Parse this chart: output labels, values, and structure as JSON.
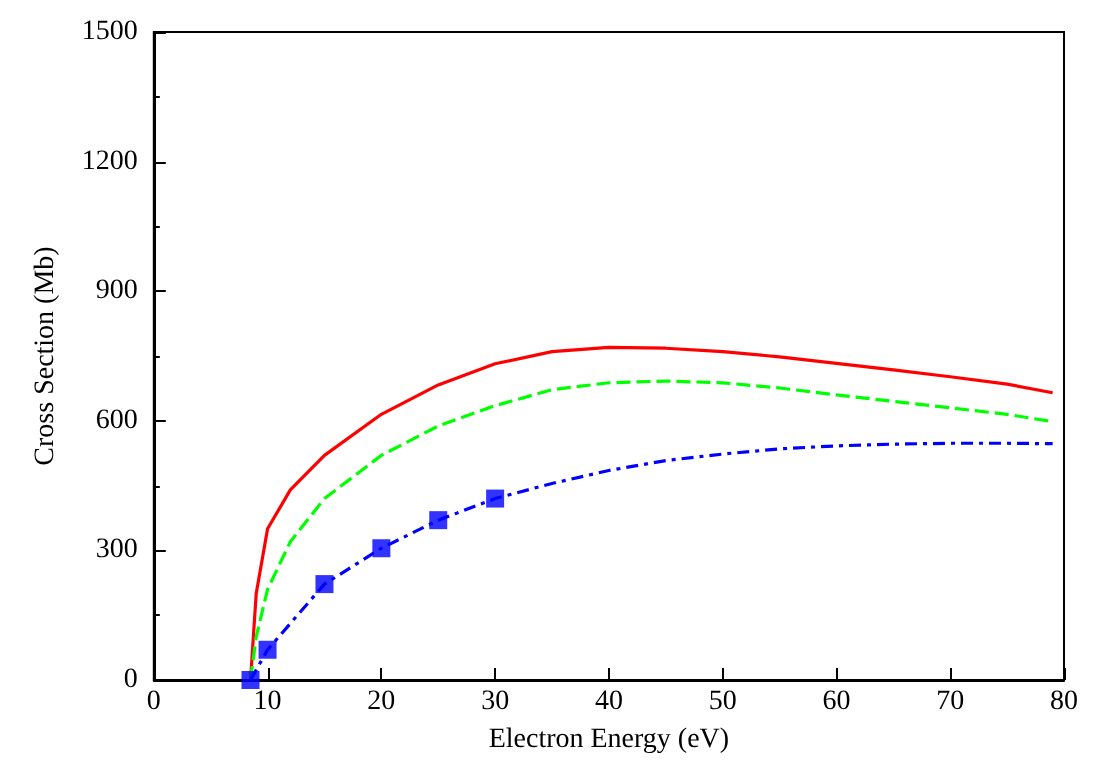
{
  "chart_data": {
    "type": "line",
    "xlabel": "Electron Energy (eV)",
    "ylabel": "Cross Section (Mb)",
    "xlim": [
      0,
      80
    ],
    "xticks": [
      0,
      10,
      20,
      30,
      40,
      50,
      60,
      70,
      80
    ],
    "ylim": [
      0,
      1500
    ],
    "yticks": [
      0,
      300,
      600,
      900,
      1200,
      1500
    ],
    "grid": false,
    "series": [
      {
        "color": "#ff0000",
        "line_style": "solid",
        "marker": "none",
        "x": [
          8.5,
          9,
          10,
          12,
          15,
          20,
          25,
          30,
          35,
          40,
          45,
          50,
          55,
          60,
          65,
          70,
          75,
          79
        ],
        "values": [
          0,
          200,
          350,
          440,
          520,
          615,
          683,
          732,
          760,
          770,
          768,
          760,
          748,
          733,
          718,
          702,
          685,
          665
        ]
      },
      {
        "color": "#00ff00",
        "line_style": "dashed",
        "marker": "none",
        "x": [
          8.5,
          9,
          10,
          12,
          15,
          20,
          25,
          30,
          35,
          40,
          45,
          50,
          55,
          60,
          65,
          70,
          75,
          79
        ],
        "values": [
          0,
          100,
          210,
          320,
          420,
          520,
          588,
          635,
          672,
          688,
          692,
          688,
          676,
          660,
          645,
          630,
          615,
          598
        ]
      },
      {
        "color": "#0000ff",
        "line_style": "dashdot",
        "marker": "none",
        "x": [
          8.5,
          10,
          15,
          20,
          25,
          30,
          35,
          40,
          45,
          50,
          55,
          60,
          65,
          70,
          75,
          79
        ],
        "values": [
          0,
          70,
          222,
          305,
          370,
          420,
          455,
          485,
          508,
          523,
          535,
          542,
          546,
          548,
          548,
          547
        ]
      },
      {
        "type": "scatter",
        "color": "#0000ff",
        "marker": "square",
        "x": [
          8.5,
          10,
          15,
          20,
          25,
          30
        ],
        "values": [
          0,
          70,
          222,
          305,
          370,
          420
        ]
      }
    ]
  }
}
